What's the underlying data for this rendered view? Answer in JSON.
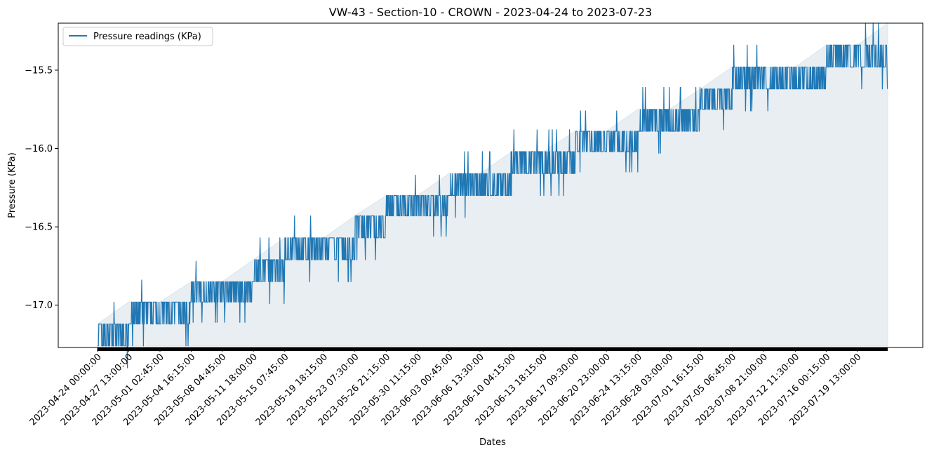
{
  "chart_data": {
    "type": "line",
    "title": "VW-43 - Section-10 - CROWN - 2023-04-24 to 2023-07-23",
    "xlabel": "Dates",
    "ylabel": "Pressure (KPa)",
    "ylim": [
      -17.27,
      -15.2
    ],
    "y_ticks": [
      -17.0,
      -16.5,
      -16.0,
      -15.5
    ],
    "y_tick_labels": [
      "−17.0",
      "−16.5",
      "−16.0",
      "−15.5"
    ],
    "x_tick_labels": [
      "2023-04-24 00:00:00",
      "2023-04-27 13:00:00",
      "2023-05-01 02:45:00",
      "2023-05-04 16:15:00",
      "2023-05-08 04:45:00",
      "2023-05-11 18:00:00",
      "2023-05-15 07:45:00",
      "2023-05-19 18:15:00",
      "2023-05-23 07:30:00",
      "2023-05-26 21:15:00",
      "2023-05-30 11:15:00",
      "2023-06-03 00:45:00",
      "2023-06-06 13:30:00",
      "2023-06-10 04:15:00",
      "2023-06-13 18:15:00",
      "2023-06-17 09:30:00",
      "2023-06-20 23:00:00",
      "2023-06-24 13:15:00",
      "2023-06-28 03:00:00",
      "2023-07-01 16:15:00",
      "2023-07-05 06:45:00",
      "2023-07-08 21:00:00",
      "2023-07-12 11:30:00",
      "2023-07-16 00:15:00",
      "2023-07-19 13:00:00"
    ],
    "x_range": [
      "2023-04-24 00:00:00",
      "2023-07-23 00:00:00"
    ],
    "fill_baseline": -17.26,
    "grid": false,
    "legend": {
      "placement": "top-left",
      "entries": [
        "Pressure readings (KPa)"
      ]
    },
    "series": [
      {
        "name": "Pressure readings (KPa)",
        "color": "#1f77b4",
        "fill_color": "#e8eef2",
        "x": [
          "2023-04-24 00:00:00",
          "2023-04-27 13:00:00",
          "2023-05-01 02:45:00",
          "2023-05-04 16:15:00",
          "2023-05-08 04:45:00",
          "2023-05-11 18:00:00",
          "2023-05-15 07:45:00",
          "2023-05-19 18:15:00",
          "2023-05-23 07:30:00",
          "2023-05-26 21:15:00",
          "2023-05-30 11:15:00",
          "2023-06-03 00:45:00",
          "2023-06-06 13:30:00",
          "2023-06-10 04:15:00",
          "2023-06-13 18:15:00",
          "2023-06-17 09:30:00",
          "2023-06-20 23:00:00",
          "2023-06-24 13:15:00",
          "2023-06-28 03:00:00",
          "2023-07-01 16:15:00",
          "2023-07-05 06:45:00",
          "2023-07-08 21:00:00",
          "2023-07-12 11:30:00",
          "2023-07-16 00:15:00",
          "2023-07-19 13:00:00",
          "2023-07-23 00:00:00"
        ],
        "low": [
          -17.26,
          -17.12,
          -17.12,
          -16.98,
          -16.98,
          -16.85,
          -16.71,
          -16.71,
          -16.57,
          -16.43,
          -16.43,
          -16.3,
          -16.3,
          -16.16,
          -16.16,
          -16.02,
          -16.02,
          -15.89,
          -15.89,
          -15.75,
          -15.62,
          -15.62,
          -15.62,
          -15.48,
          -15.48,
          -15.34
        ],
        "high": [
          -17.12,
          -16.98,
          -16.98,
          -16.85,
          -16.85,
          -16.71,
          -16.57,
          -16.57,
          -16.43,
          -16.3,
          -16.3,
          -16.16,
          -16.16,
          -16.02,
          -16.02,
          -15.89,
          -15.89,
          -15.75,
          -15.75,
          -15.62,
          -15.48,
          -15.48,
          -15.48,
          -15.34,
          -15.34,
          -15.2
        ]
      }
    ]
  }
}
